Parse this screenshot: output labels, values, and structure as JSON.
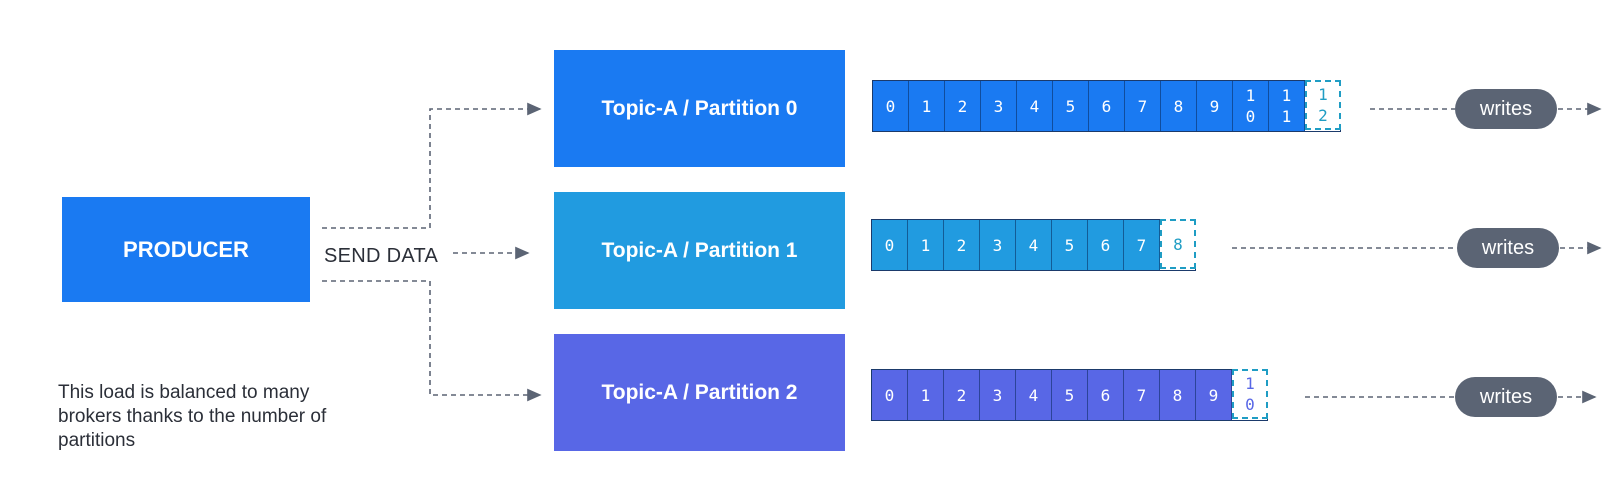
{
  "producer": {
    "label": "PRODUCER",
    "color": "#1a7af2"
  },
  "send_label": "SEND DATA",
  "note": "This load is balanced to many brokers thanks to the number of partitions",
  "partitions": [
    {
      "label": "Topic-A / Partition 0",
      "color": "#1a7af2",
      "cell_color": "#1a7af2",
      "offsets": [
        "0",
        "1",
        "2",
        "3",
        "4",
        "5",
        "6",
        "7",
        "8",
        "9",
        "1\n0",
        "1\n1"
      ],
      "next_offset": "1\n2",
      "next_color": "#1f9dc4",
      "writes": "writes"
    },
    {
      "label": "Topic-A / Partition 1",
      "color": "#219be0",
      "cell_color": "#219be0",
      "offsets": [
        "0",
        "1",
        "2",
        "3",
        "4",
        "5",
        "6",
        "7"
      ],
      "next_offset": "8",
      "next_color": "#1f9dc4",
      "writes": "writes"
    },
    {
      "label": "Topic-A / Partition 2",
      "color": "#5867e6",
      "cell_color": "#5867e6",
      "offsets": [
        "0",
        "1",
        "2",
        "3",
        "4",
        "5",
        "6",
        "7",
        "8",
        "9"
      ],
      "next_offset": "1\n0",
      "next_color": "#5867e6",
      "writes": "writes"
    }
  ]
}
